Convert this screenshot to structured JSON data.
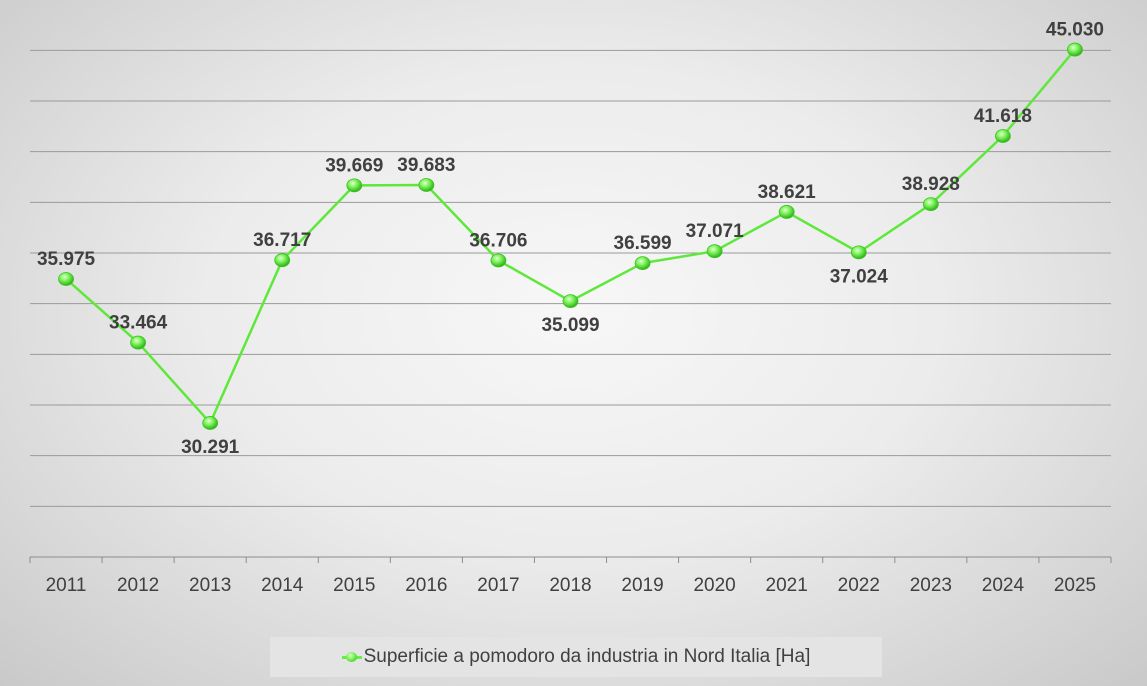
{
  "chart_data": {
    "type": "line",
    "categories": [
      "2011",
      "2012",
      "2013",
      "2014",
      "2015",
      "2016",
      "2017",
      "2018",
      "2019",
      "2020",
      "2021",
      "2022",
      "2023",
      "2024",
      "2025"
    ],
    "series": [
      {
        "name": "Superficie a pomodoro da industria in Nord Italia [Ha]",
        "values": [
          35975,
          33464,
          30291,
          36717,
          39669,
          39683,
          36706,
          35099,
          36599,
          37071,
          38621,
          37024,
          38928,
          41618,
          45030
        ],
        "data_labels": [
          "35.975",
          "33.464",
          "30.291",
          "36.717",
          "39.669",
          "39.683",
          "36.706",
          "35.099",
          "36.599",
          "37.071",
          "38.621",
          "37.024",
          "38.928",
          "41.618",
          "45.030"
        ],
        "color": "#5ee83a"
      }
    ],
    "ylim": [
      25000,
      46000
    ],
    "grid": true,
    "legend_position": "bottom",
    "y_tick_labels_shown": false
  }
}
